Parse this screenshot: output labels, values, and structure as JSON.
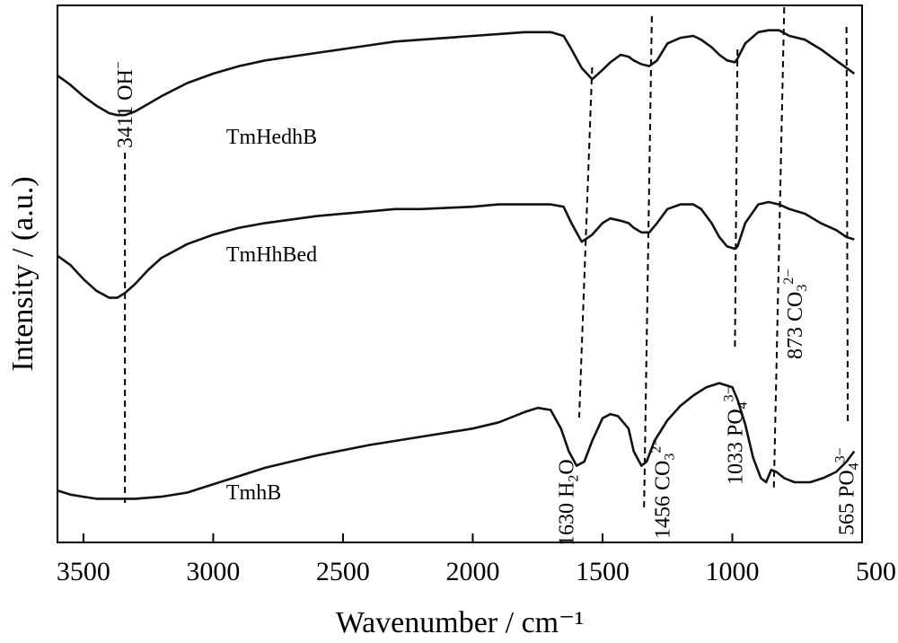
{
  "chart_data": {
    "type": "line",
    "xlabel": "Wavenumber / cm⁻¹",
    "ylabel": "Intensity / (a.u.)",
    "x_reversed": true,
    "xlim": [
      3600,
      500
    ],
    "x_ticks": [
      3500,
      3000,
      2500,
      2000,
      1500,
      1000,
      500
    ],
    "y_ticks_shown": false,
    "grid": false,
    "series": [
      {
        "name": "TmHedhB",
        "x": [
          3600,
          3550,
          3500,
          3450,
          3400,
          3370,
          3340,
          3300,
          3250,
          3200,
          3100,
          3000,
          2900,
          2800,
          2600,
          2400,
          2300,
          2200,
          2000,
          1900,
          1800,
          1750,
          1700,
          1650,
          1620,
          1580,
          1540,
          1500,
          1470,
          1430,
          1400,
          1380,
          1350,
          1320,
          1290,
          1250,
          1200,
          1150,
          1120,
          1080,
          1050,
          1020,
          990,
          980,
          950,
          900,
          860,
          820,
          780,
          720,
          660,
          600,
          560,
          530
        ],
        "y": [
          0.79,
          0.74,
          0.68,
          0.63,
          0.59,
          0.58,
          0.58,
          0.6,
          0.64,
          0.68,
          0.75,
          0.8,
          0.84,
          0.87,
          0.91,
          0.95,
          0.97,
          0.98,
          1.0,
          1.01,
          1.02,
          1.02,
          1.02,
          1.0,
          0.93,
          0.83,
          0.77,
          0.82,
          0.86,
          0.9,
          0.89,
          0.87,
          0.85,
          0.84,
          0.87,
          0.96,
          0.99,
          1.0,
          0.98,
          0.94,
          0.9,
          0.87,
          0.86,
          0.88,
          0.96,
          1.02,
          1.03,
          1.03,
          1.0,
          0.98,
          0.93,
          0.87,
          0.83,
          0.8
        ]
      },
      {
        "name": "TmHhBed",
        "x": [
          3600,
          3550,
          3500,
          3450,
          3400,
          3370,
          3340,
          3300,
          3250,
          3200,
          3100,
          3000,
          2900,
          2800,
          2600,
          2400,
          2300,
          2200,
          2000,
          1900,
          1800,
          1750,
          1700,
          1650,
          1620,
          1580,
          1540,
          1500,
          1470,
          1430,
          1400,
          1380,
          1350,
          1320,
          1290,
          1250,
          1200,
          1150,
          1120,
          1080,
          1050,
          1020,
          990,
          980,
          950,
          900,
          860,
          820,
          780,
          720,
          660,
          600,
          560,
          530
        ],
        "y": [
          0.52,
          0.48,
          0.42,
          0.37,
          0.34,
          0.34,
          0.36,
          0.4,
          0.46,
          0.51,
          0.57,
          0.61,
          0.64,
          0.66,
          0.69,
          0.71,
          0.72,
          0.72,
          0.73,
          0.74,
          0.74,
          0.74,
          0.74,
          0.73,
          0.66,
          0.58,
          0.61,
          0.66,
          0.68,
          0.67,
          0.66,
          0.64,
          0.62,
          0.62,
          0.66,
          0.72,
          0.74,
          0.74,
          0.72,
          0.66,
          0.6,
          0.56,
          0.55,
          0.56,
          0.66,
          0.74,
          0.75,
          0.74,
          0.72,
          0.7,
          0.66,
          0.63,
          0.6,
          0.59
        ]
      },
      {
        "name": "TmhB",
        "x": [
          3600,
          3550,
          3500,
          3450,
          3400,
          3350,
          3300,
          3200,
          3100,
          3000,
          2900,
          2800,
          2600,
          2400,
          2300,
          2200,
          2000,
          1900,
          1800,
          1750,
          1700,
          1660,
          1630,
          1600,
          1570,
          1540,
          1500,
          1470,
          1440,
          1400,
          1380,
          1350,
          1330,
          1300,
          1250,
          1200,
          1150,
          1100,
          1050,
          1000,
          980,
          950,
          920,
          890,
          870,
          850,
          830,
          800,
          760,
          700,
          650,
          600,
          560,
          530
        ],
        "y": [
          0.06,
          0.04,
          0.03,
          0.02,
          0.02,
          0.02,
          0.02,
          0.03,
          0.05,
          0.09,
          0.13,
          0.17,
          0.23,
          0.28,
          0.3,
          0.32,
          0.36,
          0.39,
          0.44,
          0.46,
          0.45,
          0.36,
          0.25,
          0.18,
          0.2,
          0.3,
          0.41,
          0.43,
          0.42,
          0.36,
          0.25,
          0.18,
          0.2,
          0.3,
          0.4,
          0.47,
          0.52,
          0.56,
          0.58,
          0.56,
          0.5,
          0.38,
          0.22,
          0.12,
          0.1,
          0.16,
          0.15,
          0.12,
          0.1,
          0.1,
          0.12,
          0.15,
          0.2,
          0.25
        ]
      }
    ],
    "annotations": [
      {
        "wavenumber": 3411,
        "text_main": "3411 OH",
        "text_sup": "−",
        "text_sub": ""
      },
      {
        "wavenumber": 1630,
        "text_main": "1630 H",
        "text_sub": "2",
        "text_after": "O",
        "text_sup": ""
      },
      {
        "wavenumber": 1456,
        "text_main": "1456 CO",
        "text_sub": "3",
        "text_sup": "2−"
      },
      {
        "wavenumber": 1033,
        "text_main": "1033 PO",
        "text_sub": "4",
        "text_sup": "3−"
      },
      {
        "wavenumber": 873,
        "text_main": "873 CO",
        "text_sub": "3",
        "text_sup": "2−"
      },
      {
        "wavenumber": 565,
        "text_main": "565 PO",
        "text_sub": "4",
        "text_sup": "3−"
      }
    ],
    "line_color": "#111111"
  }
}
